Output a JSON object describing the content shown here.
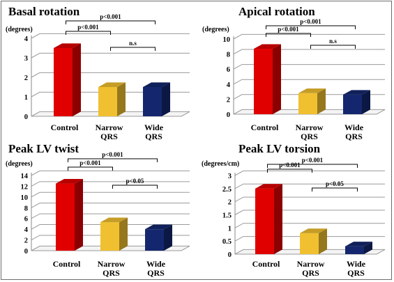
{
  "colors": {
    "control": "#e00000",
    "narrow": "#f0c030",
    "wide": "#14276e"
  },
  "chart_data": [
    {
      "type": "bar",
      "title": "Basal rotation",
      "ylabel": "(degrees)",
      "yticks": [
        "0",
        "1",
        "2",
        "3",
        "4"
      ],
      "ylim": [
        0,
        4
      ],
      "categories": [
        [
          "Control"
        ],
        [
          "Narrow",
          "QRS"
        ],
        [
          "Wide",
          "QRS"
        ]
      ],
      "values": [
        3.5,
        1.5,
        1.5
      ],
      "brackets": [
        {
          "from": 0,
          "to": 1,
          "label": "p<0.001"
        },
        {
          "from": 0,
          "to": 2,
          "label": "p<0.001"
        },
        {
          "from": 1,
          "to": 2,
          "label": "n.s"
        }
      ]
    },
    {
      "type": "bar",
      "title": "Apical rotation",
      "ylabel": "(degrees)",
      "yticks": [
        "0",
        "2",
        "4",
        "6",
        "8",
        "10"
      ],
      "ylim": [
        0,
        10
      ],
      "categories": [
        [
          "Control"
        ],
        [
          "Narrow",
          "QRS"
        ],
        [
          "Wide",
          "QRS"
        ]
      ],
      "values": [
        8.7,
        2.8,
        2.6
      ],
      "brackets": [
        {
          "from": 0,
          "to": 1,
          "label": "p<0.001"
        },
        {
          "from": 0,
          "to": 2,
          "label": "p<0.001"
        },
        {
          "from": 1,
          "to": 2,
          "label": "n.s"
        }
      ]
    },
    {
      "type": "bar",
      "title": "Peak LV twist",
      "ylabel": "(degrees)",
      "yticks": [
        "0",
        "2",
        "4",
        "6",
        "8",
        "10",
        "12",
        "14"
      ],
      "ylim": [
        0,
        14
      ],
      "categories": [
        [
          "Control"
        ],
        [
          "Narrow",
          "QRS"
        ],
        [
          "Wide",
          "QRS"
        ]
      ],
      "values": [
        12.5,
        5.3,
        4.0
      ],
      "brackets": [
        {
          "from": 0,
          "to": 1,
          "label": "p<0.001"
        },
        {
          "from": 0,
          "to": 2,
          "label": "p<0.001"
        },
        {
          "from": 1,
          "to": 2,
          "label": "p<0.05"
        }
      ]
    },
    {
      "type": "bar",
      "title": "Peak LV torsion",
      "ylabel": "(degrees/cm)",
      "yticks": [
        "0",
        "0.5",
        "1",
        "1.5",
        "2",
        "2.5",
        "3"
      ],
      "ylim": [
        0,
        3
      ],
      "categories": [
        [
          "Control"
        ],
        [
          "Narrow",
          "QRS"
        ],
        [
          "Wide",
          "QRS"
        ]
      ],
      "values": [
        2.5,
        0.8,
        0.3
      ],
      "brackets": [
        {
          "from": 0,
          "to": 1,
          "label": "p<0.001"
        },
        {
          "from": 0,
          "to": 2,
          "label": "p<0.001"
        },
        {
          "from": 1,
          "to": 2,
          "label": "p<0.05"
        }
      ]
    }
  ]
}
